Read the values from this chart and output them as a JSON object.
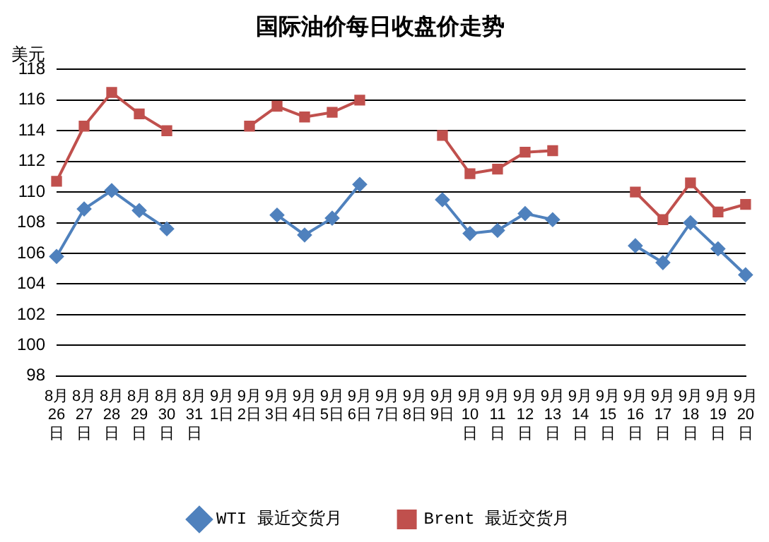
{
  "chart_data": {
    "type": "line",
    "title": "国际油价每日收盘价走势",
    "ylabel": "美元",
    "categories": [
      "8月26日",
      "8月27日",
      "8月28日",
      "8月29日",
      "8月30日",
      "8月31日",
      "9月1日",
      "9月2日",
      "9月3日",
      "9月4日",
      "9月5日",
      "9月6日",
      "9月7日",
      "9月8日",
      "9月9日",
      "9月10日",
      "9月11日",
      "9月12日",
      "9月13日",
      "9月14日",
      "9月15日",
      "9月16日",
      "9月17日",
      "9月18日",
      "9月19日",
      "9月20日"
    ],
    "series": [
      {
        "name": "WTI 最近交货月",
        "color": "#4f81bd",
        "marker": "diamond",
        "values": [
          105.8,
          108.9,
          110.1,
          108.8,
          107.6,
          null,
          null,
          null,
          108.5,
          107.2,
          108.3,
          110.5,
          null,
          null,
          109.5,
          107.3,
          107.5,
          108.6,
          108.2,
          null,
          null,
          106.5,
          105.4,
          108.0,
          106.3,
          104.6
        ]
      },
      {
        "name": "Brent 最近交货月",
        "color": "#c0504d",
        "marker": "square",
        "values": [
          110.7,
          114.3,
          116.5,
          115.1,
          114.0,
          null,
          null,
          114.3,
          115.6,
          114.9,
          115.2,
          116.0,
          null,
          null,
          113.7,
          111.2,
          111.5,
          112.6,
          112.7,
          null,
          null,
          110.0,
          108.2,
          110.6,
          108.7,
          109.2
        ]
      }
    ],
    "ylim": [
      98,
      118
    ],
    "yticks": [
      98,
      100,
      102,
      104,
      106,
      108,
      110,
      112,
      114,
      116,
      118
    ],
    "grid": "y",
    "legend": "bottom",
    "line_style": "solid"
  }
}
